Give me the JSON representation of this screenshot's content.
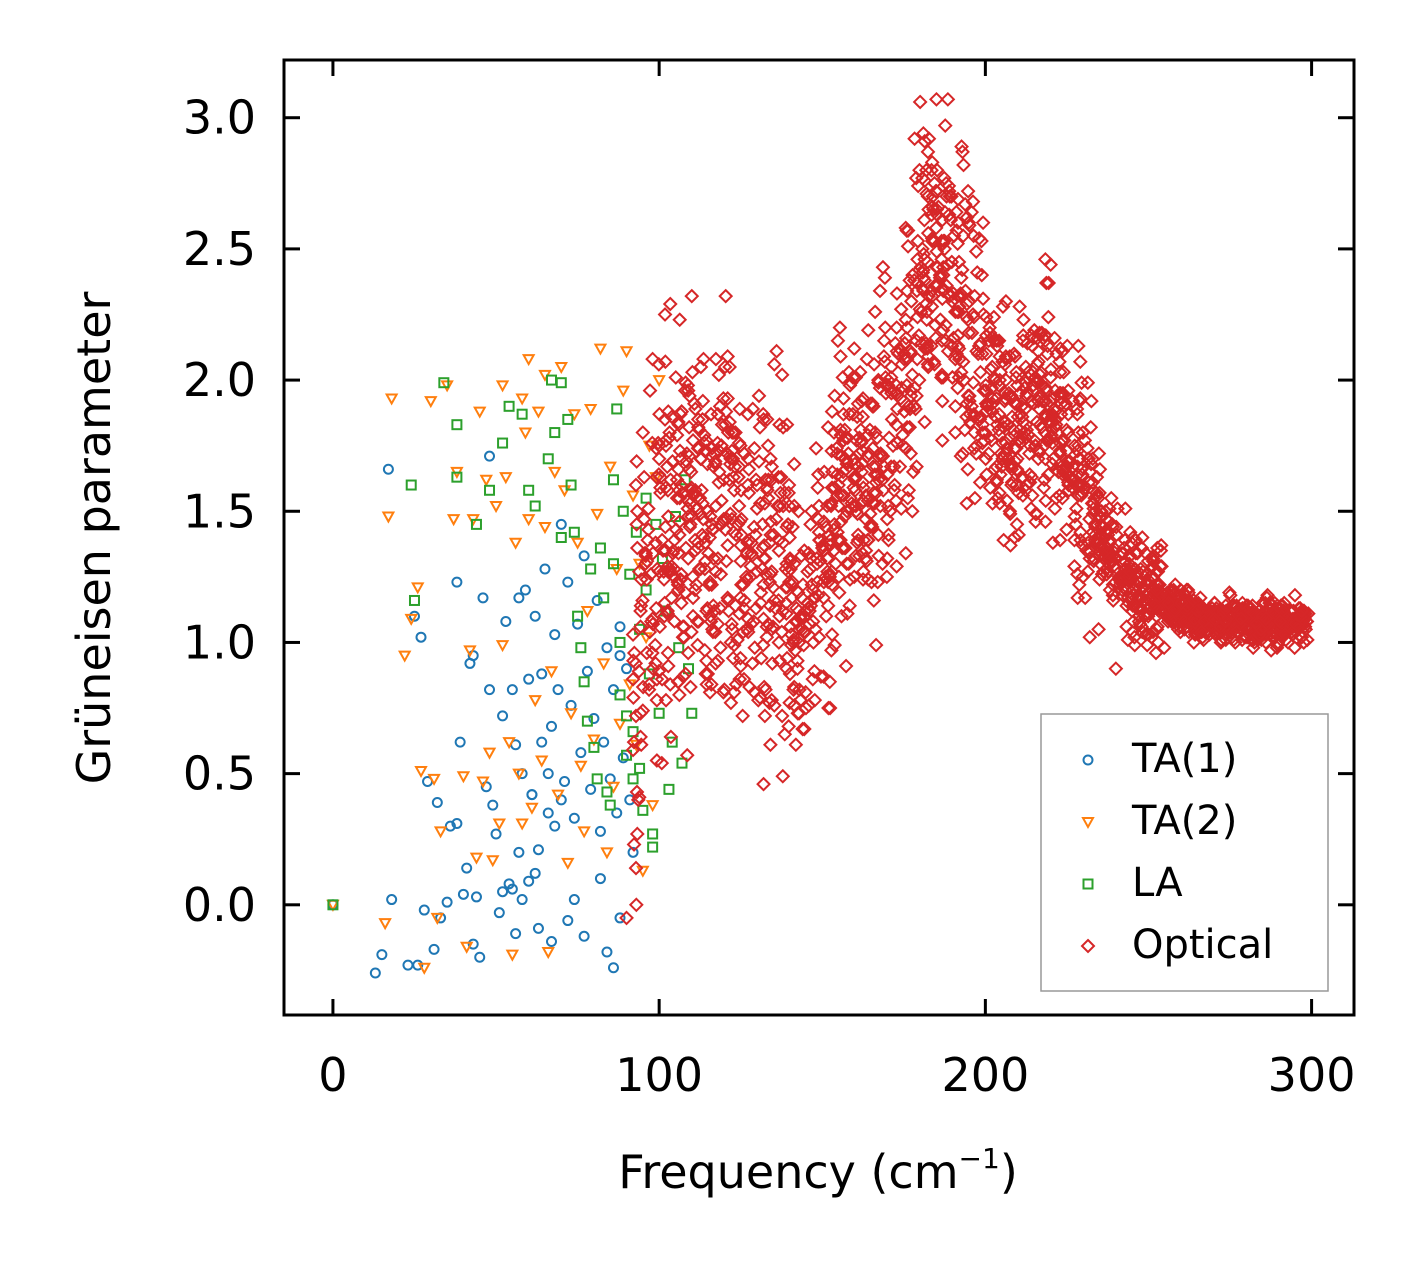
{
  "chart_data": {
    "type": "scatter",
    "title": "",
    "xlabel": "Frequency (cm",
    "xlabel_sup": "−1",
    "xlabel_close": ")",
    "ylabel": "Grüneisen parameter",
    "xlim": [
      -15,
      313
    ],
    "ylim": [
      -0.42,
      3.22
    ],
    "xticks": [
      0,
      100,
      200,
      300
    ],
    "xtick_labels": [
      "0",
      "100",
      "200",
      "300"
    ],
    "yticks": [
      0.0,
      0.5,
      1.0,
      1.5,
      2.0,
      2.5,
      3.0
    ],
    "ytick_labels": [
      "0.0",
      "0.5",
      "1.0",
      "1.5",
      "2.0",
      "2.5",
      "3.0"
    ],
    "grid": false,
    "legend_position": "lower-right",
    "series": [
      {
        "name": "TA(1)",
        "marker": "circle",
        "color": "#1f77b4",
        "points": [
          [
            0,
            0
          ],
          [
            13,
            -0.26
          ],
          [
            15,
            -0.19
          ],
          [
            17,
            1.66
          ],
          [
            18,
            0.02
          ],
          [
            23,
            -0.23
          ],
          [
            25,
            1.1
          ],
          [
            26,
            -0.23
          ],
          [
            27,
            1.02
          ],
          [
            28,
            -0.02
          ],
          [
            29,
            0.47
          ],
          [
            31,
            -0.17
          ],
          [
            32,
            0.39
          ],
          [
            33,
            -0.05
          ],
          [
            35,
            0.01
          ],
          [
            36,
            0.3
          ],
          [
            38,
            0.31
          ],
          [
            38,
            1.23
          ],
          [
            39,
            0.62
          ],
          [
            40,
            0.04
          ],
          [
            41,
            0.14
          ],
          [
            42,
            0.92
          ],
          [
            43,
            0.95
          ],
          [
            43,
            -0.15
          ],
          [
            44,
            0.03
          ],
          [
            45,
            -0.2
          ],
          [
            46,
            1.17
          ],
          [
            47,
            0.45
          ],
          [
            48,
            1.71
          ],
          [
            48,
            0.82
          ],
          [
            49,
            0.38
          ],
          [
            50,
            0.27
          ],
          [
            51,
            -0.03
          ],
          [
            52,
            0.72
          ],
          [
            53,
            1.08
          ],
          [
            54,
            0.08
          ],
          [
            55,
            0.82
          ],
          [
            56,
            0.61
          ],
          [
            56,
            -0.11
          ],
          [
            57,
            1.17
          ],
          [
            58,
            0.5
          ],
          [
            59,
            1.2
          ],
          [
            60,
            0.86
          ],
          [
            61,
            0.42
          ],
          [
            62,
            1.1
          ],
          [
            63,
            0.21
          ],
          [
            63,
            -0.09
          ],
          [
            64,
            0.62
          ],
          [
            65,
            1.28
          ],
          [
            66,
            0.35
          ],
          [
            67,
            0.68
          ],
          [
            67,
            -0.14
          ],
          [
            68,
            1.03
          ],
          [
            69,
            0.82
          ],
          [
            70,
            1.45
          ],
          [
            71,
            0.47
          ],
          [
            72,
            1.23
          ],
          [
            72,
            -0.06
          ],
          [
            73,
            0.76
          ],
          [
            74,
            0.33
          ],
          [
            75,
            1.07
          ],
          [
            76,
            0.58
          ],
          [
            77,
            1.33
          ],
          [
            77,
            -0.12
          ],
          [
            78,
            0.89
          ],
          [
            79,
            0.44
          ],
          [
            80,
            0.71
          ],
          [
            81,
            1.16
          ],
          [
            82,
            0.28
          ],
          [
            83,
            0.62
          ],
          [
            84,
            0.98
          ],
          [
            84,
            -0.18
          ],
          [
            85,
            0.48
          ],
          [
            86,
            0.82
          ],
          [
            87,
            0.35
          ],
          [
            88,
            1.06
          ],
          [
            88,
            -0.05
          ],
          [
            89,
            0.56
          ],
          [
            90,
            0.9
          ],
          [
            91,
            0.4
          ],
          [
            92,
            0.2
          ],
          [
            86,
            -0.24
          ],
          [
            52,
            0.05
          ],
          [
            55,
            0.06
          ],
          [
            58,
            0.02
          ],
          [
            60,
            0.09
          ],
          [
            62,
            0.12
          ],
          [
            57,
            0.2
          ],
          [
            61,
            0.42
          ],
          [
            64,
            0.88
          ],
          [
            66,
            0.5
          ],
          [
            68,
            0.3
          ],
          [
            70,
            0.4
          ],
          [
            74,
            0.02
          ],
          [
            82,
            0.1
          ],
          [
            88,
            0.95
          ]
        ]
      },
      {
        "name": "TA(2)",
        "marker": "triangle-down",
        "color": "#ff7f0e",
        "points": [
          [
            0,
            0
          ],
          [
            16,
            -0.07
          ],
          [
            17,
            1.48
          ],
          [
            18,
            1.93
          ],
          [
            22,
            0.95
          ],
          [
            24,
            1.09
          ],
          [
            26,
            1.21
          ],
          [
            27,
            0.51
          ],
          [
            28,
            -0.24
          ],
          [
            30,
            1.92
          ],
          [
            31,
            0.48
          ],
          [
            32,
            -0.05
          ],
          [
            33,
            0.28
          ],
          [
            35,
            1.98
          ],
          [
            37,
            1.47
          ],
          [
            38,
            1.65
          ],
          [
            40,
            0.49
          ],
          [
            41,
            -0.16
          ],
          [
            42,
            0.97
          ],
          [
            43,
            1.47
          ],
          [
            44,
            0.18
          ],
          [
            45,
            1.88
          ],
          [
            46,
            0.47
          ],
          [
            47,
            1.62
          ],
          [
            48,
            0.58
          ],
          [
            49,
            0.17
          ],
          [
            50,
            1.52
          ],
          [
            51,
            0.31
          ],
          [
            52,
            0.99
          ],
          [
            53,
            1.63
          ],
          [
            54,
            0.62
          ],
          [
            55,
            -0.19
          ],
          [
            56,
            1.38
          ],
          [
            57,
            0.5
          ],
          [
            58,
            0.31
          ],
          [
            59,
            1.8
          ],
          [
            60,
            1.47
          ],
          [
            61,
            0.37
          ],
          [
            62,
            0.78
          ],
          [
            63,
            1.88
          ],
          [
            64,
            0.55
          ],
          [
            65,
            1.44
          ],
          [
            66,
            -0.18
          ],
          [
            67,
            0.89
          ],
          [
            68,
            1.65
          ],
          [
            69,
            0.42
          ],
          [
            70,
            2.05
          ],
          [
            71,
            1.58
          ],
          [
            72,
            0.16
          ],
          [
            73,
            0.73
          ],
          [
            74,
            1.87
          ],
          [
            75,
            1.38
          ],
          [
            76,
            0.53
          ],
          [
            77,
            0.28
          ],
          [
            78,
            1.12
          ],
          [
            79,
            1.89
          ],
          [
            80,
            0.63
          ],
          [
            81,
            1.49
          ],
          [
            82,
            2.12
          ],
          [
            83,
            0.92
          ],
          [
            84,
            0.2
          ],
          [
            85,
            1.67
          ],
          [
            86,
            0.45
          ],
          [
            87,
            1.28
          ],
          [
            88,
            0.69
          ],
          [
            89,
            1.96
          ],
          [
            90,
            2.11
          ],
          [
            91,
            0.84
          ],
          [
            92,
            1.56
          ],
          [
            93,
            0.61
          ],
          [
            94,
            1.3
          ],
          [
            95,
            0.13
          ],
          [
            96,
            1.02
          ],
          [
            97,
            1.75
          ],
          [
            98,
            0.38
          ],
          [
            99,
            1.63
          ],
          [
            100,
            2.0
          ],
          [
            60,
            2.08
          ],
          [
            58,
            1.93
          ],
          [
            65,
            2.02
          ],
          [
            52,
            1.98
          ]
        ]
      },
      {
        "name": "LA",
        "marker": "square",
        "color": "#2ca02c",
        "points": [
          [
            0,
            0
          ],
          [
            24,
            1.6
          ],
          [
            25,
            1.16
          ],
          [
            34,
            1.99
          ],
          [
            38,
            1.83
          ],
          [
            38,
            1.63
          ],
          [
            44,
            1.45
          ],
          [
            48,
            1.58
          ],
          [
            52,
            1.76
          ],
          [
            54,
            1.9
          ],
          [
            58,
            1.87
          ],
          [
            60,
            1.58
          ],
          [
            62,
            1.52
          ],
          [
            66,
            1.7
          ],
          [
            67,
            2.0
          ],
          [
            68,
            1.8
          ],
          [
            70,
            1.99
          ],
          [
            70,
            1.4
          ],
          [
            72,
            1.85
          ],
          [
            73,
            1.6
          ],
          [
            74,
            1.42
          ],
          [
            75,
            1.1
          ],
          [
            76,
            0.98
          ],
          [
            77,
            0.85
          ],
          [
            78,
            0.7
          ],
          [
            79,
            1.28
          ],
          [
            80,
            0.6
          ],
          [
            81,
            0.48
          ],
          [
            82,
            1.36
          ],
          [
            83,
            1.17
          ],
          [
            84,
            0.43
          ],
          [
            85,
            0.38
          ],
          [
            86,
            1.62
          ],
          [
            87,
            1.89
          ],
          [
            88,
            0.8
          ],
          [
            89,
            1.5
          ],
          [
            90,
            0.57
          ],
          [
            91,
            1.26
          ],
          [
            92,
            0.66
          ],
          [
            93,
            1.42
          ],
          [
            94,
            1.05
          ],
          [
            95,
            0.36
          ],
          [
            96,
            1.55
          ],
          [
            97,
            0.88
          ],
          [
            98,
            0.27
          ],
          [
            99,
            1.45
          ],
          [
            100,
            0.73
          ],
          [
            101,
            1.32
          ],
          [
            102,
            1.12
          ],
          [
            103,
            0.44
          ],
          [
            104,
            0.62
          ],
          [
            105,
            1.48
          ],
          [
            106,
            0.98
          ],
          [
            107,
            0.54
          ],
          [
            108,
            1.62
          ],
          [
            109,
            0.9
          ],
          [
            110,
            0.73
          ],
          [
            98,
            0.22
          ],
          [
            92,
            0.48
          ],
          [
            86,
            1.3
          ],
          [
            88,
            1.0
          ],
          [
            90,
            0.72
          ],
          [
            94,
            0.52
          ],
          [
            96,
            1.2
          ]
        ]
      },
      {
        "name": "Optical",
        "marker": "diamond",
        "color": "#d62728",
        "points": []
      }
    ]
  },
  "legend": {
    "items": [
      {
        "label": "TA(1)"
      },
      {
        "label": "TA(2)"
      },
      {
        "label": "LA"
      },
      {
        "label": "Optical"
      }
    ]
  }
}
